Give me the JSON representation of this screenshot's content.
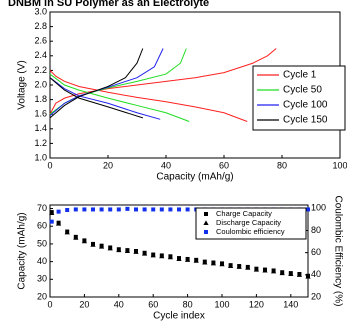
{
  "chart_data": [
    {
      "type": "line",
      "title": "DNBM in SU Polymer as an Electrolyte",
      "x_label": "Capacity (mAh/g)",
      "y_label": "Voltage (V)",
      "xlim": [
        0,
        100
      ],
      "xticks": [
        0,
        20,
        40,
        60,
        80,
        100
      ],
      "ylim": [
        1,
        3
      ],
      "yticks": [
        {
          "value": 1,
          "label": "1.0"
        },
        1.2,
        1.4,
        1.6,
        1.8,
        {
          "value": 2,
          "label": "2.0"
        },
        2.2,
        2.4,
        2.6,
        2.8,
        {
          "value": 3,
          "label": "3.0"
        }
      ],
      "legend": "right",
      "series": [
        {
          "name": "Cycle 1",
          "color": "#ff2020",
          "x": [
            0,
            2,
            5,
            10,
            20,
            30,
            40,
            50,
            60,
            68,
            null,
            0,
            2,
            5,
            10,
            20,
            30,
            40,
            50,
            60,
            70,
            75,
            78
          ],
          "values": [
            2.2,
            2.12,
            2.05,
            1.98,
            1.9,
            1.83,
            1.77,
            1.7,
            1.62,
            1.5,
            null,
            1.6,
            1.75,
            1.82,
            1.88,
            1.95,
            2.0,
            2.05,
            2.1,
            2.17,
            2.3,
            2.4,
            2.5
          ]
        },
        {
          "name": "Cycle 50",
          "color": "#22dd22",
          "x": [
            0,
            5,
            10,
            20,
            30,
            40,
            48,
            null,
            0,
            5,
            10,
            20,
            30,
            40,
            45,
            47
          ],
          "values": [
            2.15,
            2.0,
            1.93,
            1.82,
            1.72,
            1.62,
            1.5,
            null,
            1.6,
            1.75,
            1.85,
            1.96,
            2.05,
            2.15,
            2.3,
            2.5
          ]
        },
        {
          "name": "Cycle 100",
          "color": "#2222ee",
          "x": [
            0,
            5,
            10,
            20,
            30,
            38,
            null,
            0,
            5,
            10,
            20,
            30,
            36,
            39
          ],
          "values": [
            2.1,
            1.95,
            1.85,
            1.75,
            1.62,
            1.53,
            null,
            1.58,
            1.75,
            1.85,
            1.97,
            2.1,
            2.25,
            2.5
          ]
        },
        {
          "name": "Cycle 150",
          "color": "#000000",
          "x": [
            0,
            5,
            10,
            20,
            28,
            32,
            null,
            0,
            5,
            10,
            20,
            26,
            30,
            32
          ],
          "values": [
            2.1,
            1.93,
            1.82,
            1.7,
            1.6,
            1.55,
            null,
            1.55,
            1.72,
            1.84,
            1.98,
            2.1,
            2.3,
            2.5
          ]
        }
      ]
    },
    {
      "type": "scatter",
      "x_label": "Cycle index",
      "y_label": "Capacity (mAh/g)",
      "y2_label": "Coulombic Efficiency (%)",
      "xlim": [
        0,
        150
      ],
      "xticks": [
        0,
        20,
        40,
        60,
        80,
        100,
        120,
        140
      ],
      "ylim": [
        20,
        72
      ],
      "yticks": [
        20,
        30,
        40,
        50,
        60,
        70
      ],
      "y2lim": [
        20,
        103
      ],
      "y2ticks": [
        20,
        40,
        60,
        80,
        100
      ],
      "legend": "upper right",
      "x": [
        1,
        5,
        10,
        15,
        20,
        25,
        30,
        35,
        40,
        45,
        50,
        55,
        60,
        65,
        70,
        75,
        80,
        85,
        90,
        95,
        100,
        105,
        110,
        115,
        120,
        125,
        130,
        135,
        140,
        145,
        150
      ],
      "series": [
        {
          "name": "Charge Capacity",
          "color": "#000000",
          "marker": "square",
          "values": [
            68,
            62,
            57,
            54,
            52,
            50,
            49,
            48,
            47,
            46.5,
            46,
            45,
            44,
            43.5,
            43,
            42,
            41.5,
            41,
            40,
            39.5,
            39,
            38,
            37.5,
            37,
            36,
            35.5,
            35,
            34,
            33.5,
            33,
            32
          ]
        },
        {
          "name": "Discharge Capacity",
          "color": "#000000",
          "marker": "triangle",
          "values": [
            67.5,
            61.5,
            56.5,
            53.5,
            51.5,
            49.5,
            48.5,
            47.5,
            46.5,
            46,
            45.5,
            44.5,
            43.5,
            43,
            42.5,
            41.5,
            41,
            40.5,
            39.5,
            39,
            38.5,
            37.5,
            37,
            36.5,
            35.5,
            35,
            34.5,
            33.5,
            33,
            32.5,
            31.5
          ]
        },
        {
          "name": "Coulombic efficiency",
          "color": "#1030ee",
          "marker": "square",
          "axis": "y2",
          "values": [
            88,
            97,
            98.5,
            99,
            99,
            99,
            99,
            99,
            99,
            99.5,
            99,
            99,
            99,
            99,
            99,
            99,
            99,
            99,
            99,
            99,
            99,
            99,
            99,
            99,
            99,
            99,
            99,
            99,
            99,
            99,
            99
          ]
        }
      ]
    }
  ]
}
